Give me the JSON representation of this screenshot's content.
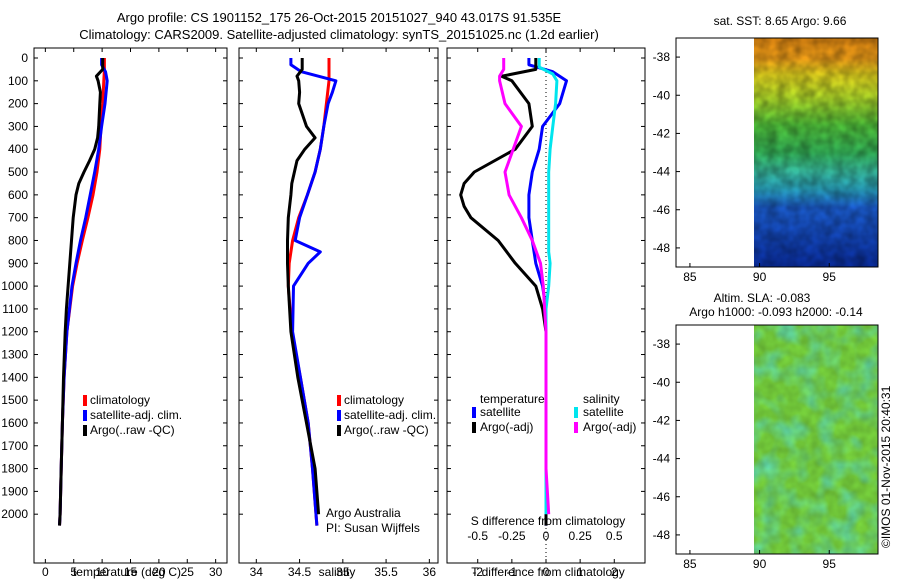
{
  "title_line1": "Argo profile: CS 1901152_175 26-Oct-2015 20151027_940 43.017S 91.535E",
  "title_line2": "Climatology: CARS2009. Satellite-adjusted climatology: synTS_20151025.nc (1.2d earlier)",
  "timestamp": "©IMOS 01-Nov-2015 20:40:31",
  "colors": {
    "climatology": "#ff0000",
    "satellite": "#0000ff",
    "argo": "#000000",
    "sat_diff_S": "#00e5ee",
    "argo_diff_S": "#ff00ff"
  },
  "chart_data": [
    {
      "type": "line",
      "id": "temperature",
      "xlabel": "temperature (deg C)",
      "ylabel": "",
      "xlim": [
        -2,
        32
      ],
      "ylim": [
        0,
        2100
      ],
      "y_reversed": true,
      "xticks": [
        0,
        5,
        10,
        15,
        20,
        25,
        30
      ],
      "yticks": [
        0,
        100,
        200,
        300,
        400,
        500,
        600,
        700,
        800,
        900,
        1000,
        1100,
        1200,
        1300,
        1400,
        1500,
        1600,
        1700,
        1800,
        1900,
        2000
      ],
      "legend": [
        "climatology",
        "satellite-adj. clim.",
        "Argo(..raw -QC)"
      ],
      "series": [
        {
          "name": "climatology",
          "color": "#ff0000",
          "depth": [
            0,
            50,
            100,
            200,
            300,
            400,
            500,
            600,
            700,
            800,
            900,
            1000,
            1200,
            1400,
            1600,
            1800,
            2000,
            2050
          ],
          "values": [
            10.4,
            10.4,
            10.3,
            10.1,
            9.8,
            9.6,
            9.1,
            8.4,
            7.5,
            6.5,
            5.6,
            4.8,
            3.8,
            3.3,
            3.0,
            2.8,
            2.6,
            2.5
          ]
        },
        {
          "name": "satellite-adj. clim.",
          "color": "#0000ff",
          "depth": [
            0,
            30,
            60,
            100,
            200,
            300,
            400,
            500,
            600,
            700,
            800,
            900,
            1000,
            1200,
            1400,
            1600,
            1800,
            2000,
            2050
          ],
          "values": [
            9.9,
            9.9,
            10.6,
            10.9,
            10.5,
            9.9,
            9.4,
            8.7,
            7.9,
            7.1,
            6.2,
            5.4,
            4.7,
            3.8,
            3.3,
            3.0,
            2.8,
            2.6,
            2.5
          ]
        },
        {
          "name": "Argo(..raw -QC)",
          "color": "#000000",
          "depth": [
            0,
            50,
            80,
            100,
            150,
            200,
            300,
            350,
            400,
            450,
            500,
            550,
            600,
            700,
            800,
            900,
            1000,
            1100,
            1200,
            1400,
            1600,
            1800,
            2000,
            2050
          ],
          "values": [
            10.1,
            10.1,
            9.0,
            9.3,
            9.7,
            9.6,
            9.4,
            9.2,
            8.7,
            7.8,
            6.8,
            5.9,
            5.4,
            4.9,
            4.6,
            4.3,
            4.0,
            3.7,
            3.5,
            3.2,
            3.0,
            2.8,
            2.6,
            2.5
          ]
        }
      ]
    },
    {
      "type": "line",
      "id": "salinity",
      "xlabel": "salinity",
      "ylabel": "",
      "xlim": [
        33.8,
        36.1
      ],
      "ylim": [
        0,
        2100
      ],
      "y_reversed": true,
      "xticks": [
        34,
        34.5,
        35,
        35.5,
        36
      ],
      "yticks": [
        0,
        100,
        200,
        300,
        400,
        500,
        600,
        700,
        800,
        900,
        1000,
        1100,
        1200,
        1300,
        1400,
        1500,
        1600,
        1700,
        1800,
        1900,
        2000
      ],
      "legend": [
        "climatology",
        "satellite-adj. clim.",
        "Argo(..raw -QC)"
      ],
      "annotations": [
        "Argo Australia",
        "PI: Susan Wijffels"
      ],
      "series": [
        {
          "name": "climatology",
          "color": "#ff0000",
          "depth": [
            0,
            100,
            200,
            300,
            400,
            500,
            600,
            700,
            800,
            900,
            1000,
            1200,
            1400,
            1600,
            1800,
            2000,
            2050
          ],
          "values": [
            34.84,
            34.84,
            34.81,
            34.78,
            34.74,
            34.68,
            34.59,
            34.49,
            34.42,
            34.38,
            34.37,
            34.41,
            34.51,
            34.6,
            34.65,
            34.69,
            34.7
          ]
        },
        {
          "name": "satellite-adj. clim.",
          "color": "#0000ff",
          "depth": [
            0,
            30,
            60,
            100,
            150,
            200,
            300,
            400,
            500,
            600,
            700,
            800,
            850,
            900,
            1000,
            1200,
            1400,
            1600,
            1800,
            2000,
            2050
          ],
          "values": [
            34.4,
            34.4,
            34.52,
            34.92,
            34.88,
            34.83,
            34.78,
            34.74,
            34.68,
            34.59,
            34.5,
            34.45,
            34.74,
            34.6,
            34.43,
            34.42,
            34.51,
            34.6,
            34.65,
            34.69,
            34.7
          ]
        },
        {
          "name": "Argo(..raw -QC)",
          "color": "#000000",
          "depth": [
            0,
            50,
            80,
            100,
            150,
            200,
            300,
            350,
            400,
            450,
            500,
            550,
            600,
            700,
            800,
            900,
            1000,
            1200,
            1400,
            1600,
            1800,
            2000
          ],
          "values": [
            34.53,
            34.53,
            34.47,
            34.49,
            34.5,
            34.49,
            34.58,
            34.68,
            34.56,
            34.47,
            34.44,
            34.41,
            34.4,
            34.37,
            34.36,
            34.36,
            34.37,
            34.4,
            34.48,
            34.58,
            34.68,
            34.72
          ]
        }
      ]
    },
    {
      "type": "line",
      "id": "difference",
      "xlabel": "T difference from climatology",
      "xlabel_top": "S difference from climatology",
      "xlim": [
        -2.9,
        2.9
      ],
      "ylim": [
        0,
        2100
      ],
      "y_reversed": true,
      "xticks": [
        -2,
        -1,
        0,
        1,
        2
      ],
      "top_ticks": [
        -0.5,
        -0.25,
        0,
        0.25,
        0.5
      ],
      "top_tick_labels": [
        "-0.5",
        "-0.25",
        "0",
        "0.25",
        "0.5"
      ],
      "yticks": [
        0,
        100,
        200,
        300,
        400,
        500,
        600,
        700,
        800,
        900,
        1000,
        1100,
        1200,
        1300,
        1400,
        1500,
        1600,
        1700,
        1800,
        1900,
        2000
      ],
      "legend_groups": [
        {
          "title": "temperature",
          "entries": [
            "satellite",
            "Argo(-adj)"
          ]
        },
        {
          "title": "salinity",
          "entries": [
            "satellite",
            "Argo(-adj)"
          ]
        }
      ],
      "series": [
        {
          "name": "satellite T",
          "color": "#0000ff",
          "depth": [
            0,
            30,
            60,
            100,
            200,
            300,
            400,
            500,
            600,
            700,
            800,
            900,
            1000,
            1100,
            1200,
            1400,
            1600,
            1800,
            2000,
            2050
          ],
          "values": [
            -0.5,
            -0.5,
            0.2,
            0.6,
            0.4,
            -0.1,
            -0.2,
            -0.4,
            -0.5,
            -0.5,
            -0.4,
            -0.3,
            -0.1,
            0.0,
            0.0,
            0.0,
            0.0,
            0.0,
            0.0,
            0.0
          ]
        },
        {
          "name": "Argo T",
          "color": "#000000",
          "depth": [
            0,
            50,
            80,
            100,
            200,
            300,
            400,
            500,
            550,
            600,
            650,
            700,
            800,
            900,
            1000,
            1100,
            1200,
            1400,
            1600,
            1800,
            2000,
            2050
          ],
          "values": [
            -0.3,
            -0.3,
            -1.3,
            -1.0,
            -0.5,
            -0.4,
            -0.9,
            -2.1,
            -2.4,
            -2.5,
            -2.4,
            -2.2,
            -1.4,
            -0.9,
            -0.3,
            -0.1,
            0.0,
            0.0,
            0.0,
            0.0,
            0.0,
            0.0
          ]
        },
        {
          "name": "satellite S",
          "color": "#00e5ee",
          "depth": [
            0,
            40,
            70,
            100,
            200,
            300,
            400,
            500,
            600,
            700,
            800,
            850,
            900,
            1000,
            1100,
            1200,
            1400,
            1600,
            1800,
            1900,
            2000
          ],
          "values": [
            -0.05,
            -0.05,
            0.05,
            0.08,
            0.07,
            0.05,
            0.03,
            0.02,
            0.02,
            0.02,
            0.02,
            0.02,
            0.03,
            0.02,
            0.0,
            0.0,
            0.0,
            0.0,
            0.0,
            0.0,
            0.0
          ]
        },
        {
          "name": "Argo S",
          "color": "#ff00ff",
          "depth": [
            0,
            50,
            80,
            100,
            200,
            300,
            400,
            500,
            600,
            700,
            800,
            900,
            1000,
            1200,
            1400,
            1600,
            1800,
            2000
          ],
          "values": [
            -0.31,
            -0.31,
            -0.34,
            -0.34,
            -0.3,
            -0.18,
            -0.24,
            -0.3,
            -0.27,
            -0.18,
            -0.1,
            -0.04,
            -0.02,
            0.0,
            0.0,
            0.0,
            0.0,
            0.02
          ]
        }
      ]
    },
    {
      "type": "heatmap",
      "id": "sst_map",
      "title": "sat. SST: 8.65 Argo: 9.66",
      "xlim": [
        84,
        98.5
      ],
      "ylim": [
        -49,
        -37
      ],
      "xticks": [
        85,
        90,
        95
      ],
      "yticks": [
        -38,
        -40,
        -42,
        -44,
        -46,
        -48
      ],
      "data_extent_lon": [
        90,
        98.5
      ],
      "zones": [
        {
          "lat_from": -37,
          "lat_to": -38.2,
          "level": "orange"
        },
        {
          "lat_from": -38.2,
          "lat_to": -40,
          "level": "yellow"
        },
        {
          "lat_from": -40,
          "lat_to": -43,
          "level": "green"
        },
        {
          "lat_from": -43,
          "lat_to": -45.5,
          "level": "cyan-green"
        },
        {
          "lat_from": -45.5,
          "lat_to": -49,
          "level": "blue"
        }
      ]
    },
    {
      "type": "heatmap",
      "id": "sla_map",
      "title_line1": "Altim. SLA: -0.083",
      "title_line2": "Argo h1000: -0.093 h2000: -0.14",
      "xlim": [
        84,
        98.5
      ],
      "ylim": [
        -49,
        -37
      ],
      "xticks": [
        85,
        90,
        95
      ],
      "yticks": [
        -38,
        -40,
        -42,
        -44,
        -46,
        -48
      ],
      "data_extent_lon": [
        90,
        98.5
      ],
      "level": "mostly green with cyan patches"
    }
  ]
}
